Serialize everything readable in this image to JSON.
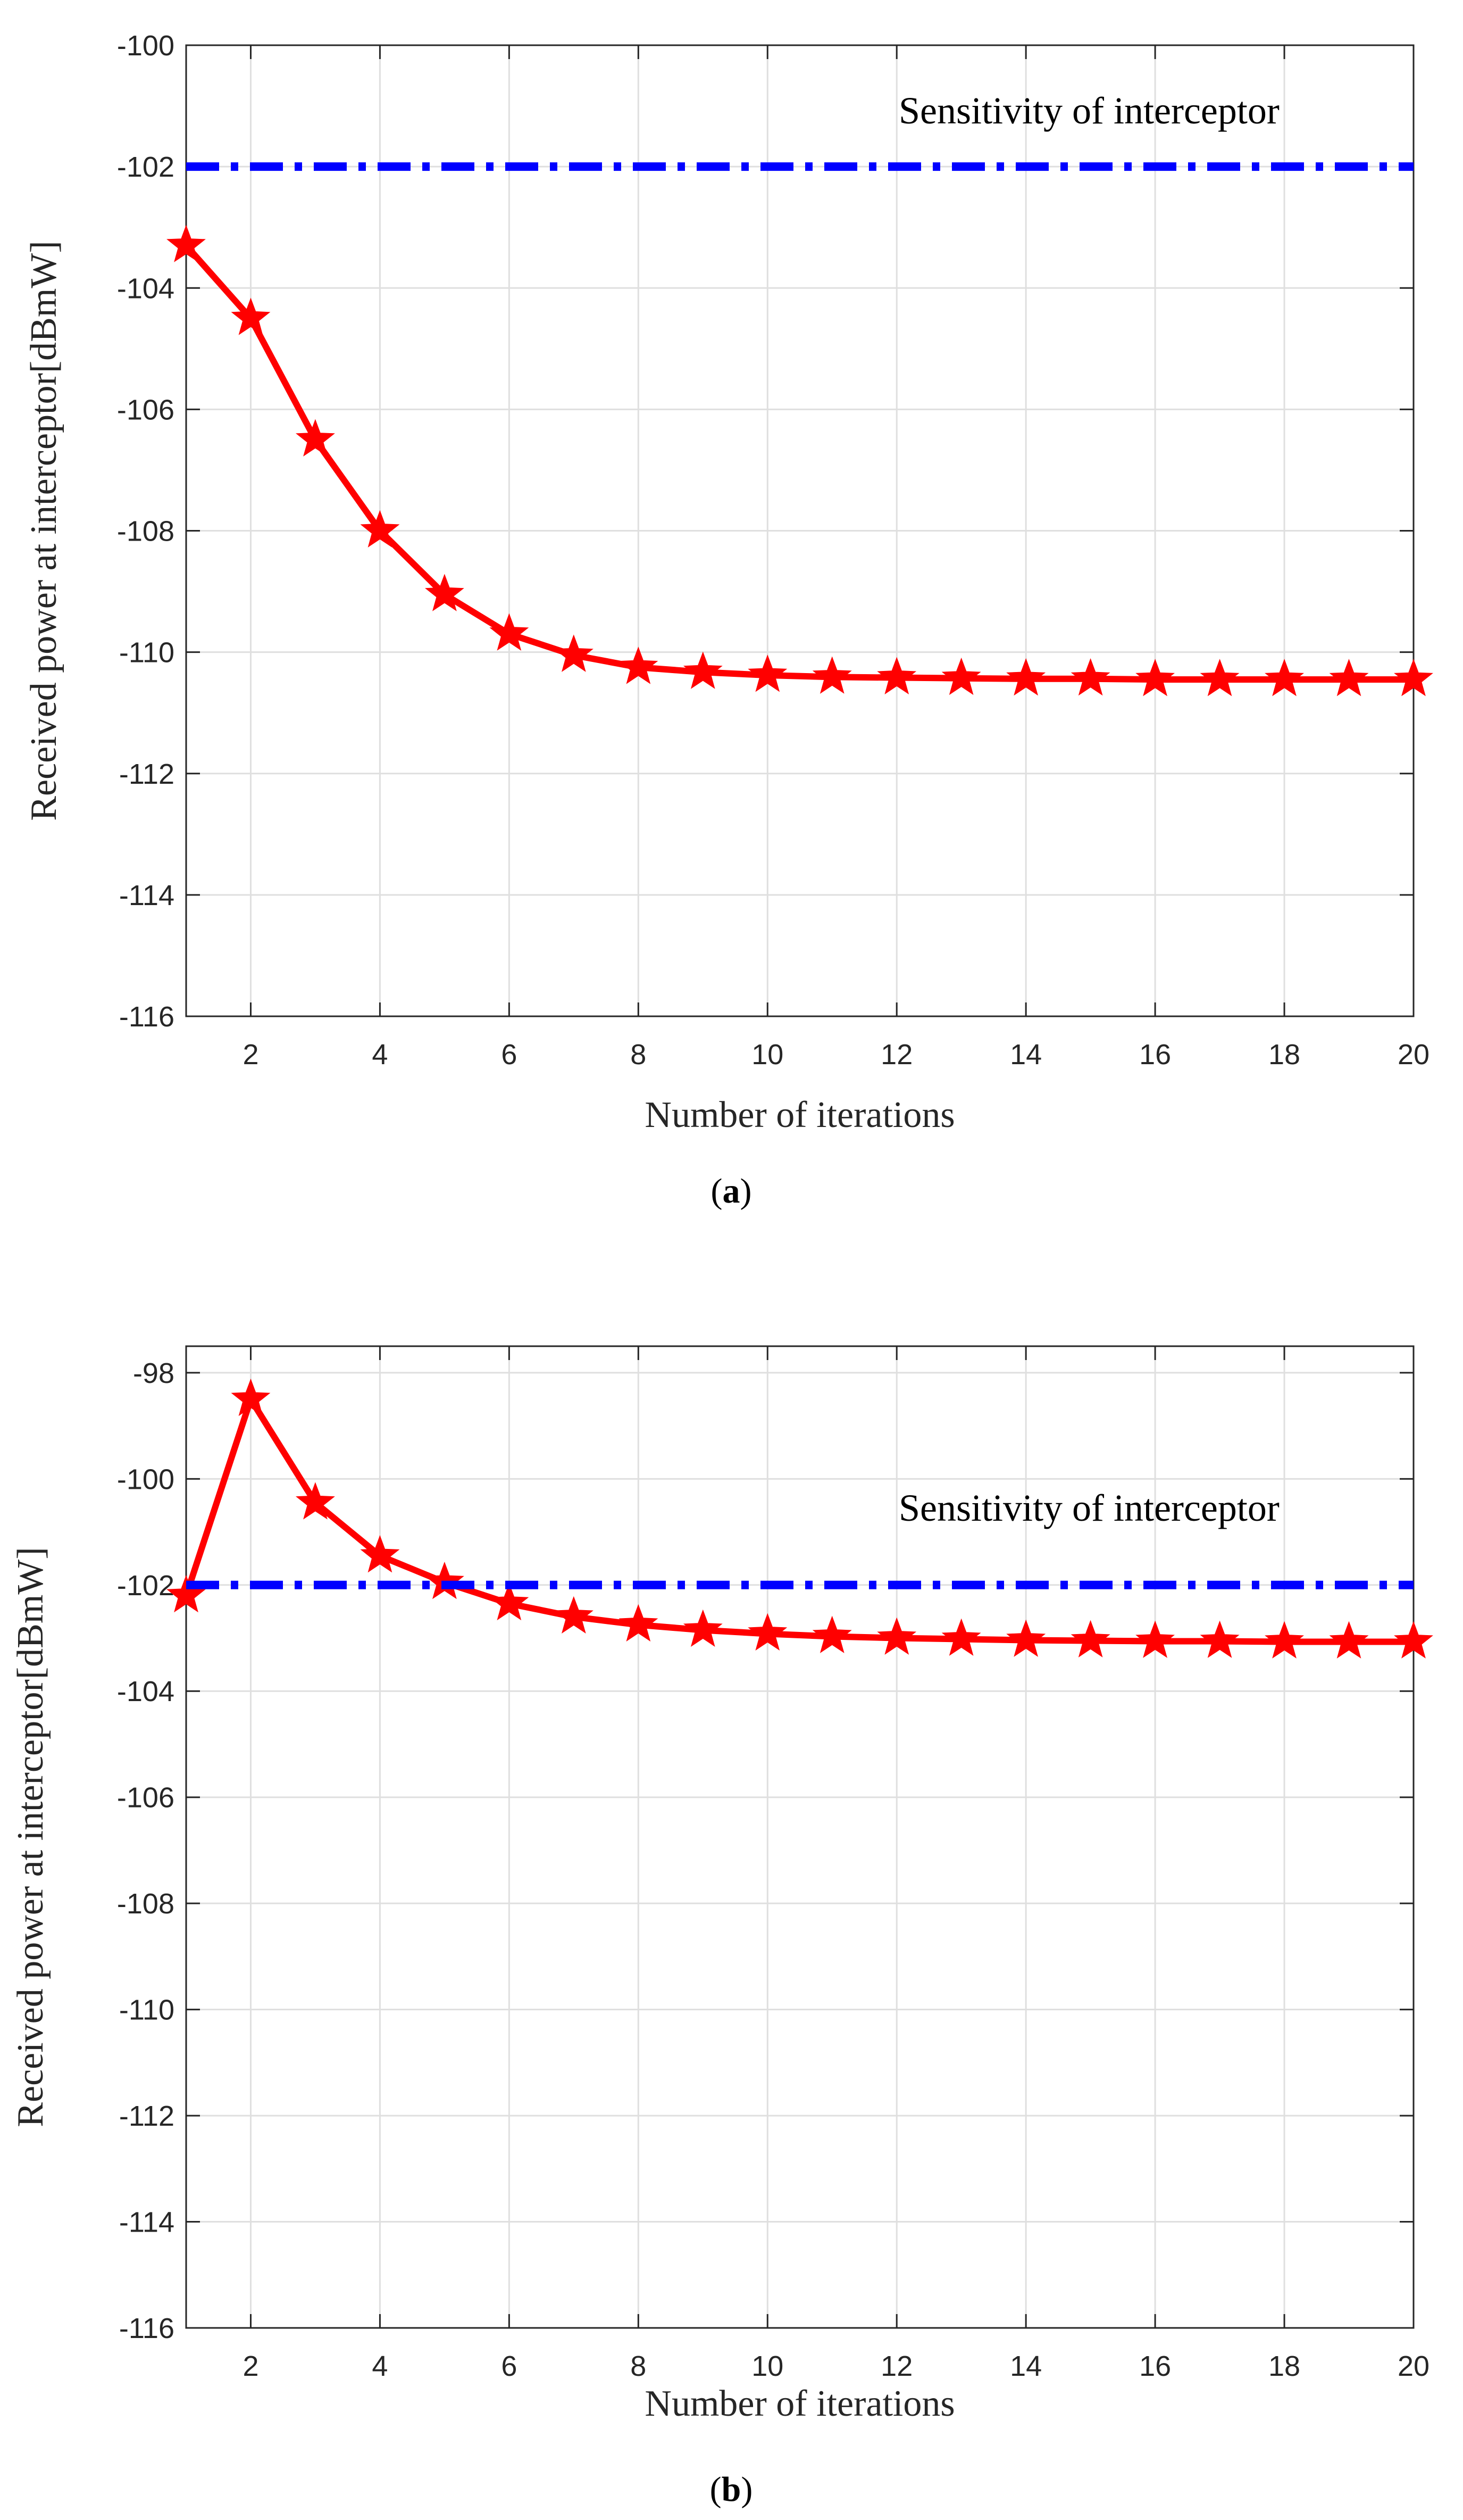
{
  "chart_data": [
    {
      "type": "line",
      "panel": "a",
      "caption_open": "(",
      "caption_letter": "a",
      "caption_close": ")",
      "xlabel": "Number of iterations",
      "ylabel": "Received power at interceptor[dBmW]",
      "xlim": [
        1,
        20
      ],
      "ylim": [
        -116,
        -100
      ],
      "xticks": [
        2,
        4,
        6,
        8,
        10,
        12,
        14,
        16,
        18,
        20
      ],
      "yticks": [
        -116,
        -114,
        -112,
        -110,
        -108,
        -106,
        -104,
        -102,
        -100
      ],
      "grid": true,
      "annotation": "Sensitivity of interceptor",
      "series": [
        {
          "name": "Received power",
          "style": "solid-star",
          "color": "#ff0000",
          "x": [
            1,
            2,
            3,
            4,
            5,
            6,
            7,
            8,
            9,
            10,
            11,
            12,
            13,
            14,
            15,
            16,
            17,
            18,
            19,
            20
          ],
          "y": [
            -103.3,
            -104.5,
            -106.5,
            -108.0,
            -109.05,
            -109.7,
            -110.05,
            -110.25,
            -110.33,
            -110.38,
            -110.41,
            -110.42,
            -110.43,
            -110.44,
            -110.44,
            -110.45,
            -110.45,
            -110.45,
            -110.45,
            -110.45
          ]
        },
        {
          "name": "Sensitivity of interceptor",
          "style": "dashdot",
          "color": "#0000ff",
          "x": [
            1,
            20
          ],
          "y": [
            -102,
            -102
          ]
        }
      ]
    },
    {
      "type": "line",
      "panel": "b",
      "caption_open": "(",
      "caption_letter": "b",
      "caption_close": ")",
      "xlabel": "Number of iterations",
      "ylabel": "Received power at interceptor[dBmW]",
      "xlim": [
        1,
        20
      ],
      "ylim": [
        -116,
        -97.5
      ],
      "xticks": [
        2,
        4,
        6,
        8,
        10,
        12,
        14,
        16,
        18,
        20
      ],
      "yticks": [
        -116,
        -114,
        -112,
        -110,
        -108,
        -106,
        -104,
        -102,
        -100,
        -98
      ],
      "grid": true,
      "annotation": "Sensitivity of interceptor",
      "series": [
        {
          "name": "Received power",
          "style": "solid-star",
          "color": "#ff0000",
          "x": [
            1,
            2,
            3,
            4,
            5,
            6,
            7,
            8,
            9,
            10,
            11,
            12,
            13,
            14,
            15,
            16,
            17,
            18,
            19,
            20
          ],
          "y": [
            -102.2,
            -98.5,
            -100.45,
            -101.45,
            -101.95,
            -102.35,
            -102.6,
            -102.75,
            -102.85,
            -102.92,
            -102.97,
            -103.0,
            -103.02,
            -103.04,
            -103.05,
            -103.06,
            -103.06,
            -103.07,
            -103.07,
            -103.07
          ]
        },
        {
          "name": "Sensitivity of interceptor",
          "style": "dashdot",
          "color": "#0000ff",
          "x": [
            1,
            20
          ],
          "y": [
            -102,
            -102
          ]
        }
      ]
    }
  ]
}
